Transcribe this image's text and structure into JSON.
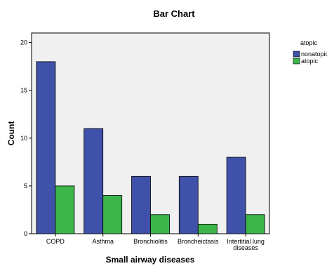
{
  "chart_data": {
    "type": "bar",
    "title": "Bar Chart",
    "xlabel": "Small airway diseases",
    "ylabel": "Count",
    "categories": [
      "COPD",
      "Asthma",
      "Bronchiolitis",
      "Broncheictasis",
      [
        "Intertitial lung",
        "diseases"
      ]
    ],
    "series": [
      {
        "name": "nonatopic",
        "values": [
          18,
          11,
          6,
          6,
          8
        ],
        "color": "#3f51a8"
      },
      {
        "name": "atopic",
        "values": [
          5,
          4,
          2,
          1,
          2
        ],
        "color": "#3cb54a"
      }
    ],
    "ylim": [
      0,
      21
    ],
    "yticks": [
      0,
      5,
      10,
      15,
      20
    ],
    "grid": false,
    "legend": {
      "title": "atopic",
      "position": "top-right"
    },
    "plot_background": "#f0f0f0"
  }
}
